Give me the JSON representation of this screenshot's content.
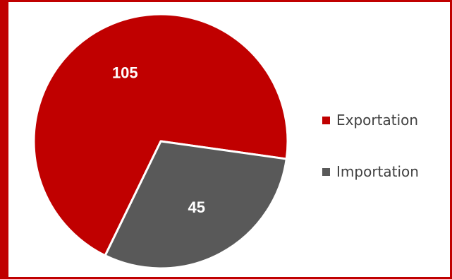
{
  "chart_data": {
    "type": "pie",
    "categories": [
      "Exportation",
      "Importation"
    ],
    "values": [
      105,
      45
    ],
    "colors": [
      "#c00000",
      "#595959"
    ],
    "data_labels": [
      "105",
      "45"
    ],
    "legend_position": "right",
    "title": ""
  }
}
